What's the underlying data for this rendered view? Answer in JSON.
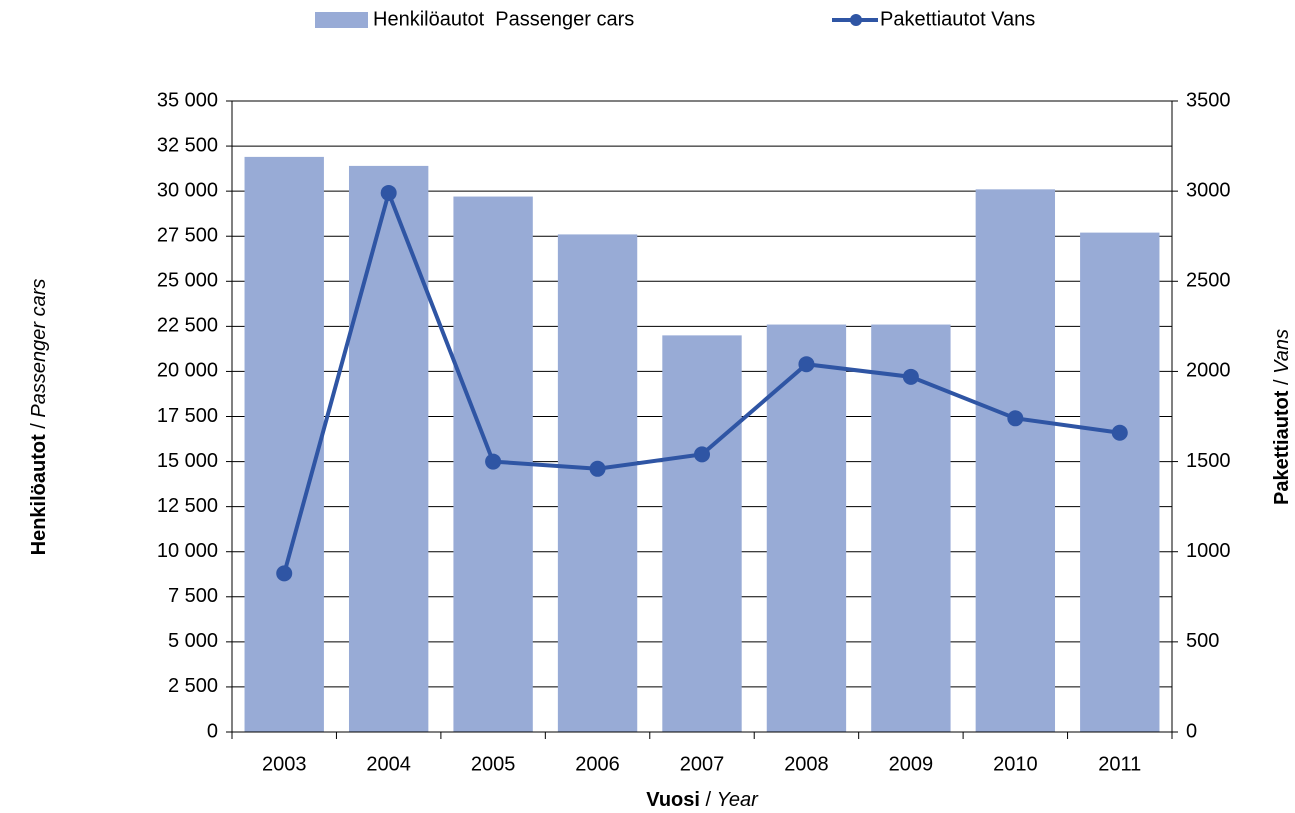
{
  "chart_data": {
    "type": "bar",
    "categories": [
      "2003",
      "2004",
      "2005",
      "2006",
      "2007",
      "2008",
      "2009",
      "2010",
      "2011"
    ],
    "series": [
      {
        "name": "Henkilöautot  Passenger cars",
        "type": "bar",
        "color": "#98abd6",
        "values": [
          31900,
          31400,
          29700,
          27600,
          22000,
          22600,
          22600,
          30100,
          27700
        ]
      },
      {
        "name": "Pakettiautot Vans",
        "type": "line",
        "axis": "y2",
        "color": "#2f55a4",
        "values": [
          880,
          2990,
          1500,
          1460,
          1540,
          2040,
          1970,
          1740,
          1660
        ]
      }
    ],
    "ylabel": [
      "Henkilöautot",
      " / ",
      "Passenger cars"
    ],
    "y2label": [
      "Pakettiautot",
      " / ",
      "Vans"
    ],
    "xlabel": [
      "Vuosi",
      " / ",
      "Year"
    ],
    "ylim": [
      0,
      35000
    ],
    "yticks": [
      0,
      {
        "value": 2500,
        "label": "2 500"
      },
      {
        "value": 5000,
        "label": "5 000"
      },
      {
        "value": 7500,
        "label": "7 500"
      },
      {
        "value": 10000,
        "label": "10 000"
      },
      {
        "value": 12500,
        "label": "12 500"
      },
      {
        "value": 15000,
        "label": "15 000"
      },
      {
        "value": 17500,
        "label": "17 500"
      },
      {
        "value": 20000,
        "label": "20 000"
      },
      {
        "value": 22500,
        "label": "22 500"
      },
      {
        "value": 25000,
        "label": "25 000"
      },
      {
        "value": 27500,
        "label": "27 500"
      },
      {
        "value": 30000,
        "label": "30 000"
      },
      {
        "value": 32500,
        "label": "32 500"
      },
      {
        "value": 35000,
        "label": "35 000"
      }
    ],
    "y2lim": [
      0,
      3500
    ],
    "y2ticks": [
      0,
      500,
      1000,
      1500,
      2000,
      2500,
      3000,
      3500
    ],
    "grid": true,
    "legend": "top"
  }
}
